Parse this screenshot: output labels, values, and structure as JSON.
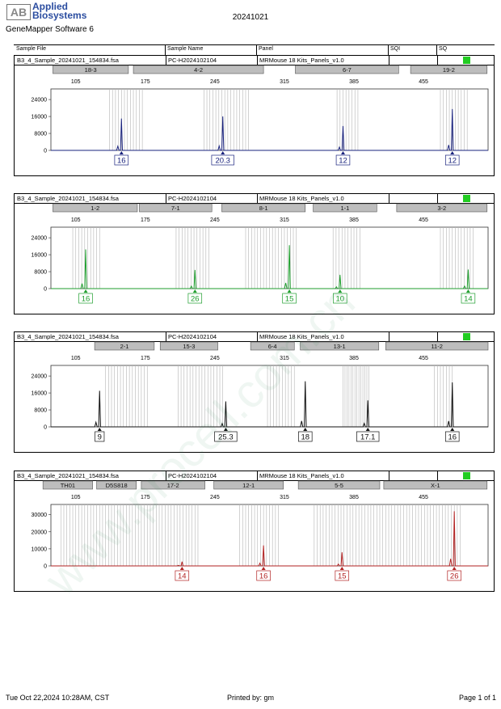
{
  "header": {
    "logo_mark": "AB",
    "brand_line1": "Applied",
    "brand_line2": "Biosystems",
    "software": "GeneMapper Software 6",
    "title": "20241021"
  },
  "columns": {
    "sample_file": "Sample File",
    "sample_name": "Sample Name",
    "panel": "Panel",
    "sqi": "SQI",
    "sq": "SQ"
  },
  "watermark": "www.procell.com.cn",
  "footer": {
    "datetime": "Tue Oct 22,2024 10:28AM, CST",
    "printed_by": "Printed by: gm",
    "page": "Page 1 of 1"
  },
  "chart_data": [
    {
      "type": "line",
      "sample_file": "B3_4_Sample_20241021_154834.fsa",
      "sample_name": "PC-H2024102104",
      "panel": "MRMouse 18 Kits_Panels_v1.0",
      "sq_color": "#22cc22",
      "color": "#1a237e",
      "x_ticks": [
        105,
        175,
        245,
        315,
        385,
        455
      ],
      "y_ticks": [
        0,
        8000,
        16000,
        24000
      ],
      "xlim": [
        80,
        520
      ],
      "ylim": [
        0,
        29000
      ],
      "markers": [
        {
          "label": "18-3",
          "start": 82,
          "end": 158
        },
        {
          "label": "4-2",
          "start": 163,
          "end": 294
        },
        {
          "label": "6-7",
          "start": 326,
          "end": 430
        },
        {
          "label": "19-2",
          "start": 442,
          "end": 519
        }
      ],
      "bins": [
        139,
        142,
        145,
        148,
        151,
        154,
        157,
        160,
        163,
        166,
        169,
        172,
        234,
        237,
        240,
        243,
        246,
        249,
        252,
        255,
        258,
        261,
        264,
        267,
        270,
        273,
        276,
        279,
        368,
        371,
        374,
        377,
        380,
        383,
        386,
        389,
        472,
        475,
        478,
        481,
        484,
        487,
        490,
        493,
        496,
        499
      ],
      "peaks": [
        {
          "x": 151,
          "y": 15000,
          "label": "16"
        },
        {
          "x": 253,
          "y": 16000,
          "label": "20.3"
        },
        {
          "x": 374,
          "y": 11500,
          "label": "12"
        },
        {
          "x": 484,
          "y": 19500,
          "label": "12"
        }
      ]
    },
    {
      "type": "line",
      "sample_file": "B3_4_Sample_20241021_154834.fsa",
      "sample_name": "PC-H2024102104",
      "panel": "MRMouse 18 Kits_Panels_v1.0",
      "sq_color": "#22cc22",
      "color": "#1f9e2e",
      "x_ticks": [
        105,
        175,
        245,
        315,
        385,
        455
      ],
      "y_ticks": [
        0,
        8000,
        16000,
        24000
      ],
      "xlim": [
        80,
        520
      ],
      "ylim": [
        0,
        29000
      ],
      "markers": [
        {
          "label": "1-2",
          "start": 82,
          "end": 167
        },
        {
          "label": "7-1",
          "start": 169,
          "end": 242
        },
        {
          "label": "8-1",
          "start": 252,
          "end": 336
        },
        {
          "label": "1-1",
          "start": 344,
          "end": 408
        },
        {
          "label": "3-2",
          "start": 428,
          "end": 519
        }
      ],
      "bins": [
        102,
        105,
        108,
        111,
        114,
        117,
        120,
        123,
        126,
        129,
        206,
        209,
        212,
        215,
        218,
        221,
        224,
        227,
        230,
        233,
        236,
        239,
        276,
        279,
        282,
        285,
        288,
        291,
        294,
        297,
        300,
        303,
        306,
        309,
        312,
        315,
        318,
        321,
        324,
        327,
        364,
        367,
        370,
        373,
        376,
        379,
        382,
        385,
        388,
        391,
        472,
        475,
        478,
        481,
        484,
        487,
        490,
        493,
        496,
        499,
        502,
        505
      ],
      "peaks": [
        {
          "x": 115,
          "y": 18500,
          "label": "16"
        },
        {
          "x": 225,
          "y": 8800,
          "label": "26"
        },
        {
          "x": 320,
          "y": 20500,
          "label": "15"
        },
        {
          "x": 371,
          "y": 6500,
          "label": "10"
        },
        {
          "x": 500,
          "y": 9000,
          "label": "14"
        }
      ]
    },
    {
      "type": "line",
      "sample_file": "B3_4_Sample_20241021_154834.fsa",
      "sample_name": "PC-H2024102104",
      "panel": "MRMouse 18 Kits_Panels_v1.0",
      "sq_color": "#22cc22",
      "color": "#111111",
      "x_ticks": [
        105,
        175,
        245,
        315,
        385,
        455
      ],
      "y_ticks": [
        0,
        8000,
        16000,
        24000
      ],
      "xlim": [
        80,
        520
      ],
      "ylim": [
        0,
        29000
      ],
      "markers": [
        {
          "label": "2-1",
          "start": 124,
          "end": 184
        },
        {
          "label": "15-3",
          "start": 190,
          "end": 248
        },
        {
          "label": "6-4",
          "start": 281,
          "end": 325
        },
        {
          "label": "13-1",
          "start": 331,
          "end": 410
        },
        {
          "label": "11-2",
          "start": 417,
          "end": 520
        }
      ],
      "bins": [
        135,
        138,
        141,
        144,
        147,
        150,
        153,
        156,
        159,
        162,
        165,
        168,
        171,
        174,
        177,
        208,
        211,
        214,
        217,
        220,
        223,
        226,
        229,
        232,
        235,
        238,
        241,
        244,
        247,
        250,
        253,
        298,
        301,
        304,
        307,
        310,
        313,
        316,
        319,
        322,
        325,
        374,
        376,
        378,
        380,
        382,
        384,
        386,
        388,
        390,
        392,
        394,
        396,
        398,
        400,
        466,
        469,
        472,
        475,
        478,
        481,
        484
      ],
      "peaks": [
        {
          "x": 129,
          "y": 17000,
          "label": "9"
        },
        {
          "x": 256,
          "y": 12000,
          "label": "25.3"
        },
        {
          "x": 336,
          "y": 21500,
          "label": "18"
        },
        {
          "x": 399,
          "y": 12500,
          "label": "17.1"
        },
        {
          "x": 484,
          "y": 21000,
          "label": "16"
        }
      ]
    },
    {
      "type": "line",
      "sample_file": "B3_4_Sample_20241021_154834.fsa",
      "sample_name": "PC-H2024102104",
      "panel": "MRMouse 18 Kits_Panels_v1.0",
      "sq_color": "#22cc22",
      "color": "#b22222",
      "x_ticks": [
        105,
        175,
        245,
        315,
        385,
        455
      ],
      "y_ticks": [
        0,
        10000,
        20000,
        30000
      ],
      "xlim": [
        80,
        520
      ],
      "ylim": [
        0,
        36000
      ],
      "markers": [
        {
          "label": "TH01",
          "start": 72,
          "end": 122
        },
        {
          "label": "D5S818",
          "start": 126,
          "end": 166
        },
        {
          "label": "17-2",
          "start": 171,
          "end": 235
        },
        {
          "label": "12-1",
          "start": 244,
          "end": 314
        },
        {
          "label": "5-5",
          "start": 329,
          "end": 411
        },
        {
          "label": "X-1",
          "start": 415,
          "end": 519
        }
      ],
      "bins": [
        90,
        93,
        96,
        99,
        102,
        105,
        108,
        111,
        114,
        117,
        120,
        123,
        126,
        129,
        132,
        135,
        138,
        141,
        144,
        147,
        150,
        153,
        156,
        159,
        162,
        165,
        168,
        171,
        174,
        177,
        180,
        183,
        186,
        189,
        192,
        195,
        198,
        201,
        204,
        207,
        210,
        213,
        216,
        219,
        222,
        225,
        228,
        270,
        273,
        276,
        279,
        282,
        285,
        288,
        291,
        294,
        297,
        300,
        303,
        306,
        309,
        345,
        348,
        351,
        354,
        357,
        360,
        363,
        366,
        369,
        372,
        375,
        378,
        381,
        384,
        387,
        390,
        393,
        396,
        399,
        402,
        405,
        408,
        411,
        414,
        417,
        420,
        423,
        426,
        429,
        432,
        435,
        438,
        441,
        444,
        447,
        450,
        453,
        456,
        459,
        462,
        465,
        468,
        471,
        474,
        477,
        480,
        483,
        486,
        489,
        492
      ],
      "peaks": [
        {
          "x": 212,
          "y": 2500,
          "label": "14"
        },
        {
          "x": 294,
          "y": 12000,
          "label": "16"
        },
        {
          "x": 373,
          "y": 8000,
          "label": "15"
        },
        {
          "x": 486,
          "y": 32000,
          "label": "26"
        }
      ]
    }
  ]
}
